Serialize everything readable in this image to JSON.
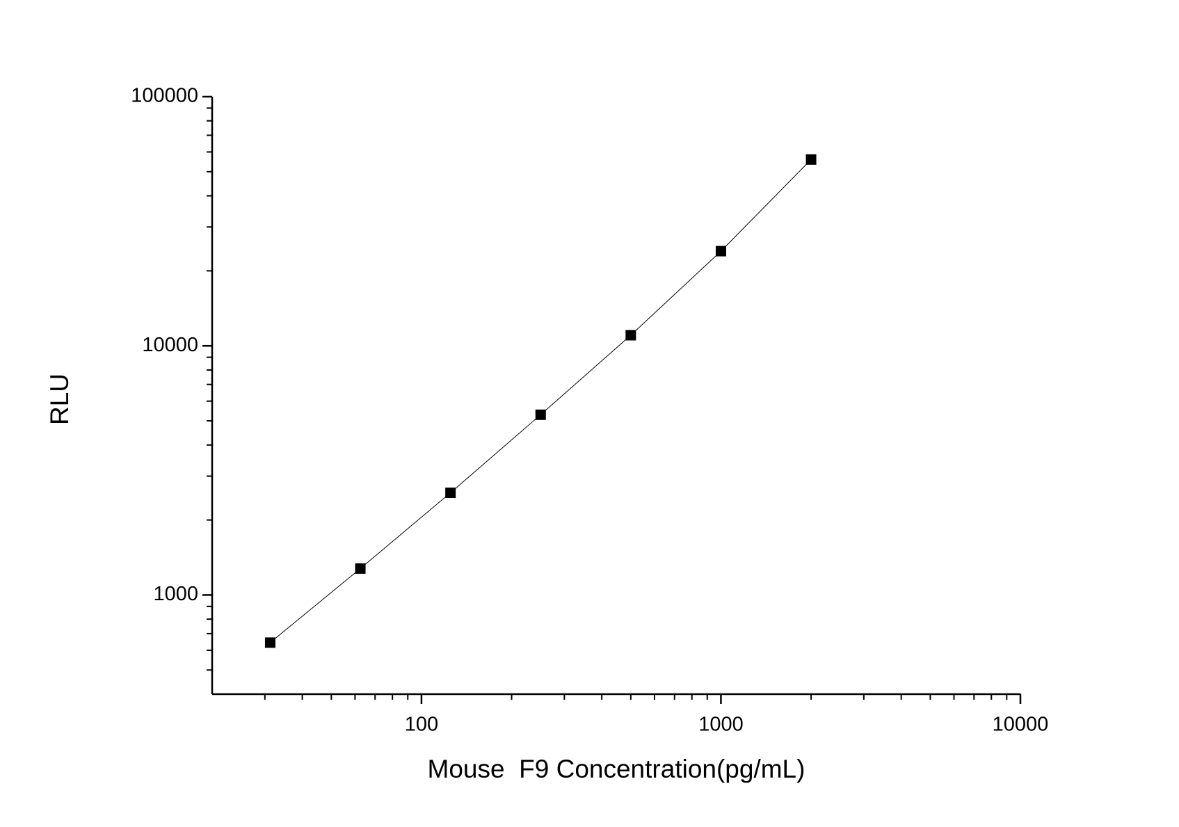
{
  "chart_data": {
    "type": "scatter",
    "line": true,
    "x_label": "Mouse  F9 Concentration(pg/mL)",
    "y_label": "RLU",
    "xscale": "log",
    "yscale": "log",
    "xlim": [
      20,
      10000
    ],
    "ylim": [
      400,
      100000
    ],
    "xticks": [
      100,
      1000,
      10000
    ],
    "yticks": [
      1000,
      10000,
      100000
    ],
    "xminorticks": [
      30,
      40,
      50,
      60,
      70,
      80,
      90,
      200,
      300,
      400,
      500,
      600,
      700,
      800,
      900,
      2000,
      3000,
      4000,
      5000,
      6000,
      7000,
      8000,
      9000
    ],
    "yminorticks": [
      500,
      600,
      700,
      800,
      900,
      2000,
      3000,
      4000,
      5000,
      6000,
      7000,
      8000,
      9000,
      20000,
      30000,
      40000,
      50000,
      60000,
      70000,
      80000,
      90000
    ],
    "x": [
      31.25,
      62.5,
      125,
      250,
      500,
      1000,
      2000
    ],
    "series": [
      {
        "name": "RLU",
        "color": "#000000",
        "values": [
          644,
          1277,
          2572,
          5290,
          11030,
          23990,
          55950
        ]
      }
    ]
  }
}
